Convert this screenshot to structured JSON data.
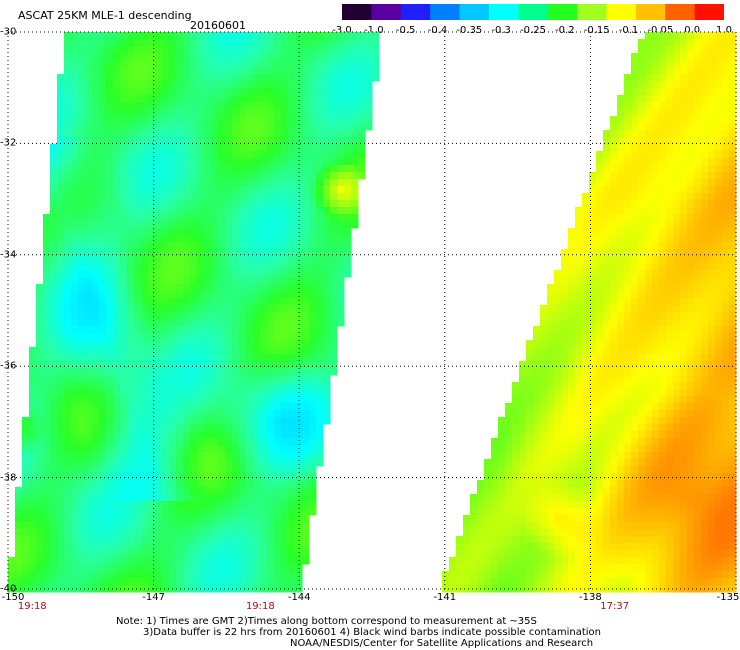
{
  "header": {
    "title": "ASCAT 25KM MLE-1 descending",
    "date": "20160601"
  },
  "colorbar": {
    "labels": [
      "-3.0",
      "-1.0",
      "-0.5",
      "-0.4",
      "-0.35",
      "-0.3",
      "-0.25",
      "-0.2",
      "-0.15",
      "-0.1",
      "-0.05",
      "0.0",
      "1.0"
    ],
    "colors": [
      "#200030",
      "#5a00a0",
      "#2020ff",
      "#0080ff",
      "#00c8ff",
      "#00ffff",
      "#00ff90",
      "#20ff20",
      "#a0ff20",
      "#ffff00",
      "#ffc000",
      "#ff6000",
      "#ff1000"
    ]
  },
  "map": {
    "lat_labels": [
      "-30",
      "-32",
      "-34",
      "-36",
      "-38",
      "-40"
    ],
    "lon_labels": [
      "-150",
      "-147",
      "-144",
      "-141",
      "-138",
      "-135"
    ],
    "time_labels": [
      {
        "text": "19:18",
        "lon": -149.5
      },
      {
        "text": "19:18",
        "lon": -144.8
      },
      {
        "text": "17:37",
        "lon": -137.5
      }
    ],
    "lat_range": [
      -40,
      -30
    ],
    "lon_range": [
      -150,
      -135
    ],
    "grid": true
  },
  "notes": {
    "line1": "Note: 1) Times are GMT 2)Times along bottom correspond to measurement at ~35S",
    "line2": "3)Data buffer is 22 hrs from 20160601 4) Black wind barbs indicate possible contamination",
    "line3": "NOAA/NESDIS/Center for Satellite Applications and Research"
  }
}
